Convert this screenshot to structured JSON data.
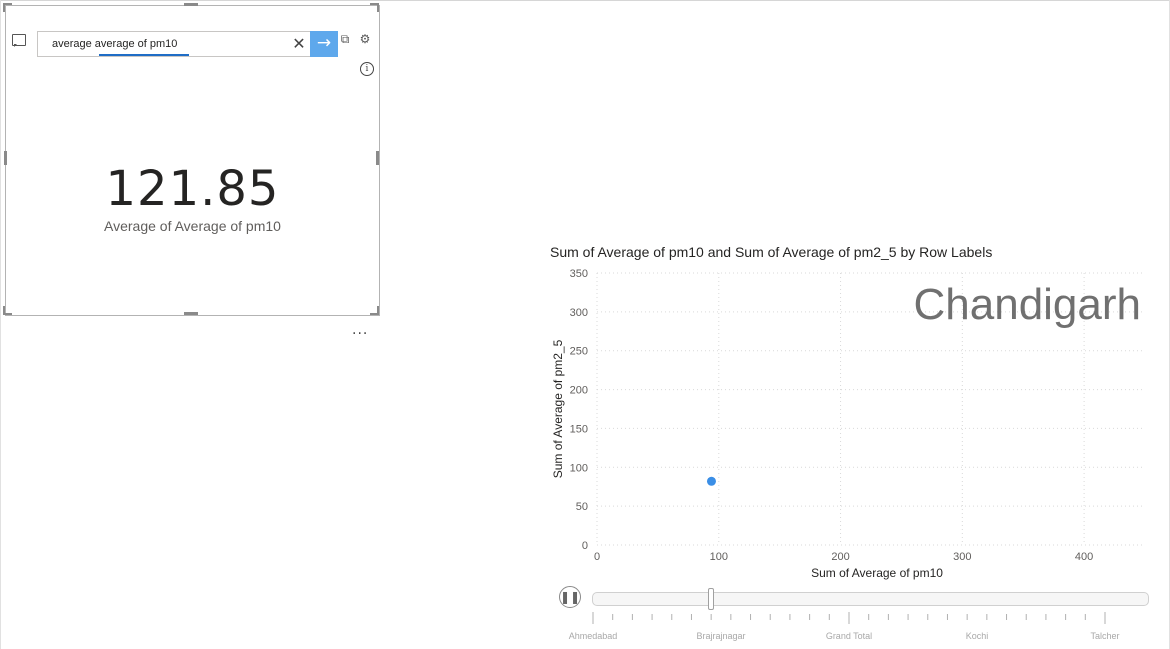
{
  "qa": {
    "query_text": "average average of pm10",
    "submit_icon": "arrow-right-icon",
    "clear_icon": "close-icon",
    "kpi_value": "121.85",
    "kpi_label": "Average of Average of pm10",
    "more_options": "..."
  },
  "chart_data": {
    "type": "scatter",
    "title": "Sum of Average of pm10 and Sum of Average of pm2_5 by Row Labels",
    "xlabel": "Sum of Average of pm10",
    "ylabel": "Sum of Average of pm2_5",
    "xlim": [
      0,
      450
    ],
    "ylim": [
      0,
      350
    ],
    "x_ticks": [
      0,
      100,
      200,
      300,
      400
    ],
    "y_ticks": [
      0,
      50,
      100,
      150,
      200,
      250,
      300,
      350
    ],
    "points": [
      {
        "x": 94,
        "y": 82
      }
    ],
    "point_color": "#3a8ee6",
    "play_axis_current": "Chandigarh",
    "grid": true
  },
  "play_axis": {
    "labels": [
      "Ahmedabad",
      "Brajrajnagar",
      "Grand Total",
      "Kochi",
      "Talcher"
    ],
    "tick_count": 27,
    "current_fraction": 0.23
  }
}
